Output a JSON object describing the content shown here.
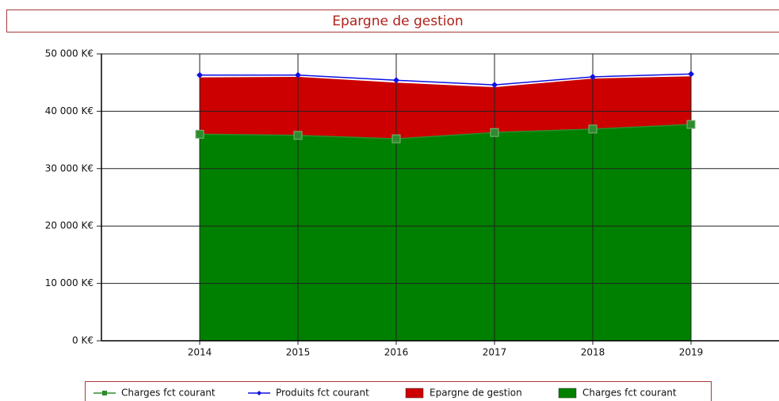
{
  "chart_data": {
    "type": "area",
    "title": "Epargne de gestion",
    "categories": [
      "2014",
      "2015",
      "2016",
      "2017",
      "2018",
      "2019"
    ],
    "series": [
      {
        "name": "Charges fct courant",
        "kind": "line",
        "marker": "square",
        "color": "#2e8b2e",
        "values": [
          36000,
          35800,
          35200,
          36300,
          36900,
          37700
        ]
      },
      {
        "name": "Produits fct courant",
        "kind": "line",
        "marker": "diamond",
        "color": "#1010e0",
        "values": [
          46300,
          46300,
          45400,
          44600,
          46000,
          46500
        ]
      },
      {
        "name": "Epargne de gestion",
        "kind": "area",
        "color": "#cc0000",
        "values": [
          9900,
          10200,
          9800,
          7900,
          8800,
          8400
        ]
      },
      {
        "name": "Charges fct courant",
        "kind": "area",
        "color": "#008000",
        "values": [
          36000,
          35800,
          35200,
          36300,
          36900,
          37700
        ]
      }
    ],
    "ylim": [
      0,
      50000
    ],
    "yticks": [
      {
        "value": 0,
        "label": "0 K€"
      },
      {
        "value": 10000,
        "label": "10 000 K€"
      },
      {
        "value": 20000,
        "label": "20 000 K€"
      },
      {
        "value": 30000,
        "label": "30 000 K€"
      },
      {
        "value": 40000,
        "label": "40 000 K€"
      },
      {
        "value": 50000,
        "label": "50 000 K€"
      }
    ],
    "grid": true,
    "legend": "bottom"
  }
}
